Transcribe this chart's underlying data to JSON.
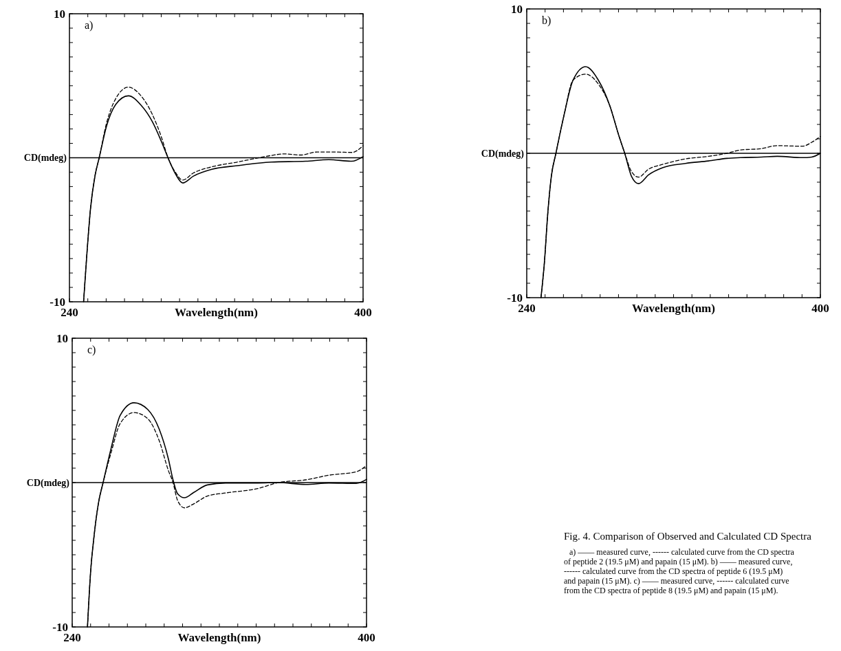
{
  "chart_data": [
    {
      "type": "line",
      "xlabel": "Wavelength(nm)",
      "ylabel": "CD(mdeg)",
      "annotations": [
        "a)"
      ],
      "xlim": [
        240,
        400
      ],
      "ylim": [
        -10,
        10
      ],
      "xticks": [
        {
          "value": 240,
          "label": "240"
        },
        {
          "value": 250,
          "label": null
        },
        {
          "value": 260,
          "label": null
        },
        {
          "value": 270,
          "label": null
        },
        {
          "value": 280,
          "label": null
        },
        {
          "value": 290,
          "label": null
        },
        {
          "value": 300,
          "label": null
        },
        {
          "value": 310,
          "label": null
        },
        {
          "value": 320,
          "label": null
        },
        {
          "value": 330,
          "label": null
        },
        {
          "value": 340,
          "label": null
        },
        {
          "value": 350,
          "label": null
        },
        {
          "value": 360,
          "label": null
        },
        {
          "value": 370,
          "label": null
        },
        {
          "value": 380,
          "label": null
        },
        {
          "value": 390,
          "label": null
        },
        {
          "value": 400,
          "label": "400"
        }
      ],
      "yticks": [
        {
          "value": -10,
          "label": "-10"
        },
        {
          "value": -9,
          "label": null
        },
        {
          "value": -8,
          "label": null
        },
        {
          "value": -7,
          "label": null
        },
        {
          "value": -6,
          "label": null
        },
        {
          "value": -5,
          "label": null
        },
        {
          "value": -4,
          "label": null
        },
        {
          "value": -3,
          "label": null
        },
        {
          "value": -2,
          "label": null
        },
        {
          "value": -1,
          "label": null
        },
        {
          "value": 0,
          "label": null
        },
        {
          "value": 1,
          "label": null
        },
        {
          "value": 2,
          "label": null
        },
        {
          "value": 3,
          "label": null
        },
        {
          "value": 4,
          "label": null
        },
        {
          "value": 5,
          "label": null
        },
        {
          "value": 6,
          "label": null
        },
        {
          "value": 7,
          "label": null
        },
        {
          "value": 8,
          "label": null
        },
        {
          "value": 9,
          "label": null
        },
        {
          "value": 10,
          "label": "10"
        }
      ],
      "ref_lines": [
        {
          "axis": "y",
          "value": 0,
          "color": "#000000",
          "line_style": "solid"
        }
      ],
      "series": [
        {
          "color": "#000000",
          "line_style": "solid",
          "x": [
            247.7,
            249.6,
            251.5,
            254,
            256.2,
            260.2,
            265.2,
            272.1,
            279,
            285.2,
            290.2,
            293.7,
            297.7,
            301.7,
            307.6,
            317.6,
            331.4,
            350,
            368.8,
            381.3,
            393.8,
            400
          ],
          "values": [
            -10,
            -6.5,
            -3.5,
            -1.2,
            0,
            2.2,
            3.7,
            4.3,
            3.65,
            2.5,
            1.1,
            0,
            -1.1,
            -1.75,
            -1.27,
            -0.8,
            -0.55,
            -0.3,
            -0.24,
            -0.13,
            -0.24,
            0.08
          ]
        },
        {
          "color": "#000000",
          "line_style": "dashed",
          "x": [
            247.7,
            249.6,
            251.5,
            254,
            256.2,
            260.2,
            265.2,
            272.1,
            279,
            285.2,
            290.2,
            293.7,
            297.7,
            301.7,
            307.6,
            317.6,
            331.4,
            340,
            350,
            357,
            366,
            375,
            385,
            393.8,
            400
          ],
          "values": [
            -10,
            -6.5,
            -3.5,
            -1.2,
            0,
            2.4,
            4.1,
            4.9,
            4.3,
            3,
            1.4,
            0,
            -1,
            -1.55,
            -1.05,
            -0.63,
            -0.3,
            -0.08,
            0.16,
            0.27,
            0.19,
            0.4,
            0.4,
            0.37,
            0.83
          ]
        }
      ]
    },
    {
      "type": "line",
      "xlabel": "Wavelength(nm)",
      "ylabel": "CD(mdeg)",
      "annotations": [
        "b)"
      ],
      "xlim": [
        240,
        400
      ],
      "ylim": [
        -10,
        10
      ],
      "xticks": [
        {
          "value": 240,
          "label": "240"
        },
        {
          "value": 250,
          "label": null
        },
        {
          "value": 260,
          "label": null
        },
        {
          "value": 270,
          "label": null
        },
        {
          "value": 280,
          "label": null
        },
        {
          "value": 290,
          "label": null
        },
        {
          "value": 300,
          "label": null
        },
        {
          "value": 310,
          "label": null
        },
        {
          "value": 320,
          "label": null
        },
        {
          "value": 330,
          "label": null
        },
        {
          "value": 340,
          "label": null
        },
        {
          "value": 350,
          "label": null
        },
        {
          "value": 360,
          "label": null
        },
        {
          "value": 370,
          "label": null
        },
        {
          "value": 380,
          "label": null
        },
        {
          "value": 390,
          "label": null
        },
        {
          "value": 400,
          "label": "400"
        }
      ],
      "yticks": [
        {
          "value": -10,
          "label": "-10"
        },
        {
          "value": -9,
          "label": null
        },
        {
          "value": -8,
          "label": null
        },
        {
          "value": -7,
          "label": null
        },
        {
          "value": -6,
          "label": null
        },
        {
          "value": -5,
          "label": null
        },
        {
          "value": -4,
          "label": null
        },
        {
          "value": -3,
          "label": null
        },
        {
          "value": -2,
          "label": null
        },
        {
          "value": -1,
          "label": null
        },
        {
          "value": 0,
          "label": null
        },
        {
          "value": 1,
          "label": null
        },
        {
          "value": 2,
          "label": null
        },
        {
          "value": 3,
          "label": null
        },
        {
          "value": 4,
          "label": null
        },
        {
          "value": 5,
          "label": null
        },
        {
          "value": 6,
          "label": null
        },
        {
          "value": 7,
          "label": null
        },
        {
          "value": 8,
          "label": null
        },
        {
          "value": 9,
          "label": null
        },
        {
          "value": 10,
          "label": "10"
        }
      ],
      "ref_lines": [
        {
          "axis": "y",
          "value": 0,
          "color": "#000000",
          "line_style": "solid"
        }
      ],
      "series": [
        {
          "color": "#000000",
          "line_style": "solid",
          "x": [
            247.75,
            249.6,
            251.5,
            253.4,
            255.9,
            260.25,
            265.25,
            272.1,
            279,
            285.25,
            290.25,
            293.4,
            297.1,
            300.9,
            306.5,
            314,
            326.5,
            339,
            349,
            356.5,
            367.75,
            376.5,
            390.25,
            395.25,
            400
          ],
          "values": [
            -10,
            -7.6,
            -4.1,
            -1.6,
            0,
            2.6,
            5.07,
            6,
            5.07,
            3.3,
            1.2,
            0,
            -1.6,
            -2.1,
            -1.48,
            -1,
            -0.7,
            -0.53,
            -0.35,
            -0.3,
            -0.26,
            -0.21,
            -0.3,
            -0.26,
            0
          ]
        },
        {
          "color": "#000000",
          "line_style": "dashed",
          "x": [
            247.75,
            249.6,
            251.5,
            253.4,
            255.9,
            260.25,
            265.25,
            272.1,
            279,
            285.25,
            290.25,
            293.4,
            297.1,
            300.9,
            306.5,
            314,
            326.5,
            339,
            349,
            356.5,
            367.75,
            376.5,
            390.25,
            395.25,
            400
          ],
          "values": [
            -10,
            -7.6,
            -4.1,
            -1.6,
            0,
            2.6,
            5.07,
            5.48,
            4.8,
            3.3,
            1.2,
            0,
            -1.27,
            -1.65,
            -1.09,
            -0.77,
            -0.39,
            -0.21,
            0,
            0.23,
            0.32,
            0.53,
            0.49,
            0.76,
            1.16
          ]
        }
      ]
    },
    {
      "type": "line",
      "xlabel": "Wavelength(nm)",
      "ylabel": "CD(mdeg)",
      "annotations": [
        "c)",
        "Fig. 4.   Comparison of Observed and Calculated CD Spectra",
        "a) —— measured curve, ------ calculated curve from the CD spectra of peptide 2 (19.5 μM) and papain (15 μM). b) —— measured curve, ------ calculated curve from the CD spectra of peptide 6 (19.5 μM) and papain (15 μM). c) —— measured curve, ------ calculated curve from the CD spectra of peptide 8 (19.5 μM) and papain (15 μM)."
      ],
      "xlim": [
        240,
        400
      ],
      "ylim": [
        -10,
        10
      ],
      "xticks": [
        {
          "value": 240,
          "label": "240"
        },
        {
          "value": 250,
          "label": null
        },
        {
          "value": 260,
          "label": null
        },
        {
          "value": 270,
          "label": null
        },
        {
          "value": 280,
          "label": null
        },
        {
          "value": 290,
          "label": null
        },
        {
          "value": 300,
          "label": null
        },
        {
          "value": 310,
          "label": null
        },
        {
          "value": 320,
          "label": null
        },
        {
          "value": 330,
          "label": null
        },
        {
          "value": 340,
          "label": null
        },
        {
          "value": 350,
          "label": null
        },
        {
          "value": 360,
          "label": null
        },
        {
          "value": 370,
          "label": null
        },
        {
          "value": 380,
          "label": null
        },
        {
          "value": 390,
          "label": null
        },
        {
          "value": 400,
          "label": "400"
        }
      ],
      "yticks": [
        {
          "value": -10,
          "label": "-10"
        },
        {
          "value": -9,
          "label": null
        },
        {
          "value": -8,
          "label": null
        },
        {
          "value": -7,
          "label": null
        },
        {
          "value": -6,
          "label": null
        },
        {
          "value": -5,
          "label": null
        },
        {
          "value": -4,
          "label": null
        },
        {
          "value": -3,
          "label": null
        },
        {
          "value": -2,
          "label": null
        },
        {
          "value": -1,
          "label": null
        },
        {
          "value": 0,
          "label": null
        },
        {
          "value": 1,
          "label": null
        },
        {
          "value": 2,
          "label": null
        },
        {
          "value": 3,
          "label": null
        },
        {
          "value": 4,
          "label": null
        },
        {
          "value": 5,
          "label": null
        },
        {
          "value": 6,
          "label": null
        },
        {
          "value": 7,
          "label": null
        },
        {
          "value": 8,
          "label": null
        },
        {
          "value": 9,
          "label": null
        },
        {
          "value": 10,
          "label": "10"
        }
      ],
      "ref_lines": [
        {
          "axis": "y",
          "value": 0,
          "color": "#000000",
          "line_style": "solid"
        }
      ],
      "series": [
        {
          "color": "#000000",
          "line_style": "solid",
          "x": [
            248.3,
            250,
            251.8,
            254.3,
            256.8,
            261.2,
            266.1,
            273.6,
            281.1,
            287.3,
            292.3,
            294.8,
            297.3,
            301,
            306,
            313.5,
            323.4,
            340.9,
            352,
            367,
            379.5,
            394.4,
            400
          ],
          "values": [
            -10,
            -6.2,
            -3.8,
            -1.4,
            0,
            2.4,
            4.66,
            5.53,
            5.06,
            3.7,
            1.63,
            0.19,
            -0.77,
            -1.05,
            -0.69,
            -0.16,
            -0.03,
            -0.03,
            0,
            -0.13,
            -0.03,
            -0.06,
            0.22
          ]
        },
        {
          "color": "#000000",
          "line_style": "dashed",
          "x": [
            248.3,
            250,
            251.8,
            254.3,
            256.8,
            261.2,
            266.1,
            273.6,
            281.1,
            287.3,
            292.3,
            294.8,
            297.3,
            301,
            306,
            313.5,
            323.4,
            340.9,
            352,
            367,
            379.5,
            394.4,
            400
          ],
          "values": [
            -10,
            -6.2,
            -3.8,
            -1.4,
            0,
            2.1,
            4.1,
            4.85,
            4.42,
            2.9,
            0.83,
            0,
            -1.24,
            -1.75,
            -1.48,
            -0.93,
            -0.72,
            -0.41,
            0,
            0.19,
            0.51,
            0.75,
            1.18
          ]
        }
      ]
    }
  ]
}
